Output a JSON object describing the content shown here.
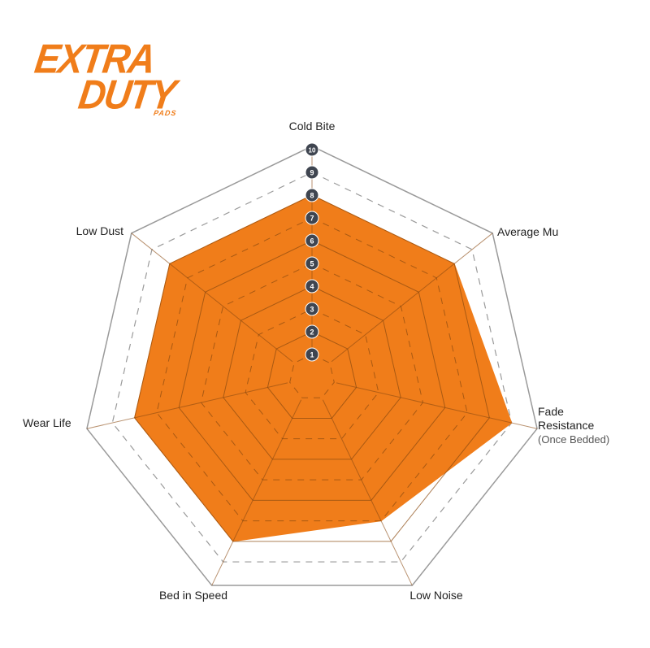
{
  "logo": {
    "line1": "EXTRA",
    "line2": "DUTY",
    "line3": "PADS"
  },
  "chart_data": {
    "type": "radar",
    "axes": [
      "Cold Bite",
      "Average Mu",
      "Fade Resistance",
      "Low Noise",
      "Bed in Speed",
      "Wear Life",
      "Low Dust"
    ],
    "axis_sublabels": {
      "Fade Resistance": "(Once Bedded)"
    },
    "values": [
      8,
      8,
      9,
      7,
      8,
      8,
      8
    ],
    "range": [
      0,
      10
    ],
    "tick_labels": [
      "1",
      "2",
      "3",
      "4",
      "5",
      "6",
      "7",
      "8",
      "9",
      "10"
    ],
    "fill_color": "#f07d1a",
    "grid_color": "#9a9a9a",
    "tick_badge_color": "#3f4550"
  }
}
